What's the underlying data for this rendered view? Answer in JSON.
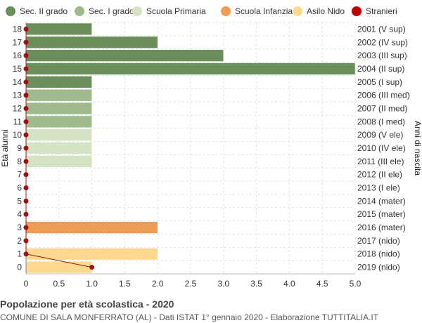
{
  "chart_data": {
    "type": "bar",
    "orientation": "horizontal",
    "title": "Popolazione per età scolastica - 2020",
    "subtitle": "COMUNE DI SALA MONFERRATO (AL) - Dati ISTAT 1° gennaio 2020 - Elaborazione TUTTITALIA.IT",
    "ylabel": "Età alunni",
    "y2label": "Anni di nascita",
    "xlim": [
      0,
      5
    ],
    "x_ticks": [
      "0",
      "0.5",
      "1.0",
      "1.5",
      "2.0",
      "2.5",
      "3.0",
      "3.5",
      "4.0",
      "4.5",
      "5.0"
    ],
    "grid": true,
    "legend_position": "top",
    "legend": [
      {
        "name": "Sec. II grado",
        "color": "#6b8e5a"
      },
      {
        "name": "Sec. I grado",
        "color": "#9fbb8e"
      },
      {
        "name": "Scuola Primaria",
        "color": "#d4e3c3"
      },
      {
        "name": "Scuola Infanzia",
        "color": "#ee9d55"
      },
      {
        "name": "Asilo Nido",
        "color": "#fcd98e"
      },
      {
        "name": "Stranieri",
        "color": "#c00000"
      }
    ],
    "rows": [
      {
        "age": "18",
        "year": "2001 (V sup)",
        "value": 1,
        "group": 0,
        "stranieri": 0
      },
      {
        "age": "17",
        "year": "2002 (IV sup)",
        "value": 2,
        "group": 0,
        "stranieri": 0
      },
      {
        "age": "16",
        "year": "2003 (III sup)",
        "value": 3,
        "group": 0,
        "stranieri": 0
      },
      {
        "age": "15",
        "year": "2004 (II sup)",
        "value": 5,
        "group": 0,
        "stranieri": 0
      },
      {
        "age": "14",
        "year": "2005 (I sup)",
        "value": 1,
        "group": 0,
        "stranieri": 0
      },
      {
        "age": "13",
        "year": "2006 (III med)",
        "value": 1,
        "group": 1,
        "stranieri": 0
      },
      {
        "age": "12",
        "year": "2007 (II med)",
        "value": 1,
        "group": 1,
        "stranieri": 0
      },
      {
        "age": "11",
        "year": "2008 (I med)",
        "value": 1,
        "group": 1,
        "stranieri": 0
      },
      {
        "age": "10",
        "year": "2009 (V ele)",
        "value": 1,
        "group": 2,
        "stranieri": 0
      },
      {
        "age": "9",
        "year": "2010 (IV ele)",
        "value": 1,
        "group": 2,
        "stranieri": 0
      },
      {
        "age": "8",
        "year": "2011 (III ele)",
        "value": 1,
        "group": 2,
        "stranieri": 0
      },
      {
        "age": "7",
        "year": "2012 (II ele)",
        "value": 0,
        "group": 2,
        "stranieri": 0
      },
      {
        "age": "6",
        "year": "2013 (I ele)",
        "value": 0,
        "group": 2,
        "stranieri": 0
      },
      {
        "age": "5",
        "year": "2014 (mater)",
        "value": 0,
        "group": 3,
        "stranieri": 0
      },
      {
        "age": "4",
        "year": "2015 (mater)",
        "value": 0,
        "group": 3,
        "stranieri": 0
      },
      {
        "age": "3",
        "year": "2016 (mater)",
        "value": 2,
        "group": 3,
        "stranieri": 0
      },
      {
        "age": "2",
        "year": "2017 (nido)",
        "value": 0,
        "group": 4,
        "stranieri": 0
      },
      {
        "age": "1",
        "year": "2018 (nido)",
        "value": 2,
        "group": 4,
        "stranieri": 0
      },
      {
        "age": "0",
        "year": "2019 (nido)",
        "value": 1,
        "group": 4,
        "stranieri": 1
      }
    ]
  }
}
